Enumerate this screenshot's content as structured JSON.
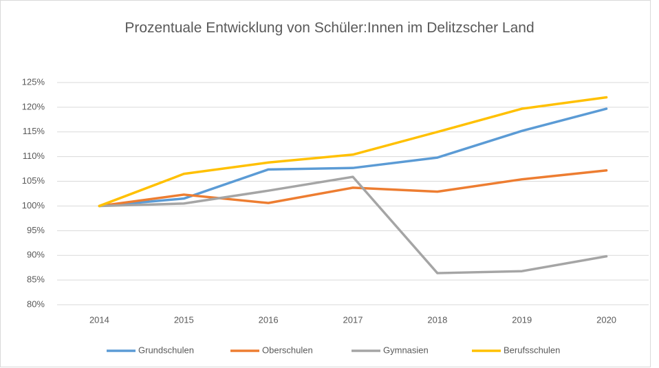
{
  "chart_data": {
    "type": "line",
    "title": "Prozentuale Entwicklung von Schüler:Innen im Delitzscher Land",
    "categories": [
      "2014",
      "2015",
      "2016",
      "2017",
      "2018",
      "2019",
      "2020"
    ],
    "series": [
      {
        "name": "Grundschulen",
        "color": "#5b9bd5",
        "values": [
          100,
          101.5,
          107.4,
          107.7,
          109.8,
          115.2,
          119.7
        ]
      },
      {
        "name": "Oberschulen",
        "color": "#ed7d31",
        "values": [
          100,
          102.3,
          100.6,
          103.7,
          102.9,
          105.4,
          107.2
        ]
      },
      {
        "name": "Gymnasien",
        "color": "#a5a5a5",
        "values": [
          100,
          100.5,
          103.1,
          105.9,
          86.4,
          86.8,
          89.8
        ]
      },
      {
        "name": "Berufsschulen",
        "color": "#ffc000",
        "values": [
          100,
          106.5,
          108.8,
          110.4,
          115.0,
          119.7,
          122.0
        ]
      }
    ],
    "ylim": [
      80,
      125
    ],
    "yticks": [
      {
        "value": 80,
        "label": "80%"
      },
      {
        "value": 85,
        "label": "85%"
      },
      {
        "value": 90,
        "label": "90%"
      },
      {
        "value": 95,
        "label": "95%"
      },
      {
        "value": 100,
        "label": "100%"
      },
      {
        "value": 105,
        "label": "105%"
      },
      {
        "value": 110,
        "label": "110%"
      },
      {
        "value": 115,
        "label": "115%"
      },
      {
        "value": 120,
        "label": "120%"
      },
      {
        "value": 125,
        "label": "125%"
      }
    ],
    "grid": true,
    "legend": "bottom"
  }
}
